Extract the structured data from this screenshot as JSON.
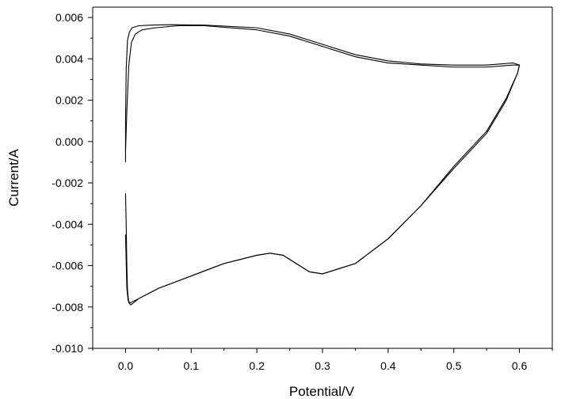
{
  "chart_data": {
    "type": "line",
    "title": "",
    "xlabel": "Potential/V",
    "ylabel": "Current/A",
    "xlim": [
      -0.05,
      0.65
    ],
    "ylim": [
      -0.01,
      0.0065
    ],
    "grid": false,
    "legend": "none",
    "x_ticks": [
      0.0,
      0.1,
      0.2,
      0.3,
      0.4,
      0.5,
      0.6
    ],
    "x_tick_labels": [
      "0.0",
      "0.1",
      "0.2",
      "0.3",
      "0.4",
      "0.5",
      "0.6"
    ],
    "y_ticks": [
      0.006,
      0.004,
      0.002,
      0.0,
      -0.002,
      -0.004,
      -0.006,
      -0.008,
      -0.01
    ],
    "y_tick_labels": [
      "0.006",
      "0.004",
      "0.002",
      "0.000",
      "-0.002",
      "-0.004",
      "-0.006",
      "-0.008",
      "-0.010"
    ],
    "series": [
      {
        "x": [
          0.0,
          0.0,
          0.001,
          0.003,
          0.006,
          0.01,
          0.02,
          0.04,
          0.07,
          0.12,
          0.2,
          0.25,
          0.3,
          0.35,
          0.4,
          0.45,
          0.5,
          0.55,
          0.59,
          0.6,
          0.597,
          0.58,
          0.55,
          0.5,
          0.45,
          0.4,
          0.35,
          0.3,
          0.28,
          0.26,
          0.24,
          0.22,
          0.2,
          0.15,
          0.1,
          0.05,
          0.02,
          0.008,
          0.005,
          0.003,
          0.002,
          0.001,
          0.0
        ],
        "y": [
          -0.001,
          0.001,
          0.0035,
          0.0049,
          0.0053,
          0.0055,
          0.0056,
          0.00563,
          0.00565,
          0.00563,
          0.0055,
          0.0052,
          0.0047,
          0.0042,
          0.0039,
          0.00375,
          0.0037,
          0.0037,
          0.0038,
          0.0037,
          0.0033,
          0.0021,
          0.0005,
          -0.0012,
          -0.0031,
          -0.0047,
          -0.0059,
          -0.0064,
          -0.0063,
          -0.0059,
          -0.0055,
          -0.0054,
          -0.0055,
          -0.0059,
          -0.0065,
          -0.0071,
          -0.0076,
          -0.0079,
          -0.0078,
          -0.0072,
          -0.006,
          -0.004,
          -0.0025
        ]
      },
      {
        "x": [
          0.0,
          0.002,
          0.005,
          0.009,
          0.015,
          0.025,
          0.045,
          0.08,
          0.12,
          0.2,
          0.25,
          0.3,
          0.35,
          0.4,
          0.45,
          0.5,
          0.55,
          0.59,
          0.6,
          0.597,
          0.58,
          0.55,
          0.5,
          0.45,
          0.4,
          0.35,
          0.3,
          0.28,
          0.26,
          0.24,
          0.22,
          0.2,
          0.15,
          0.1,
          0.05,
          0.02,
          0.007,
          0.004,
          0.002,
          0.001,
          0.0
        ],
        "y": [
          -0.0005,
          0.0015,
          0.0037,
          0.0048,
          0.0052,
          0.0054,
          0.0055,
          0.0056,
          0.0056,
          0.0054,
          0.0051,
          0.0046,
          0.0041,
          0.0038,
          0.0037,
          0.0036,
          0.0036,
          0.0037,
          0.0037,
          0.0033,
          0.002,
          0.0004,
          -0.0013,
          -0.0031,
          -0.0047,
          -0.0059,
          -0.0064,
          -0.0063,
          -0.0059,
          -0.0055,
          -0.0054,
          -0.0055,
          -0.0059,
          -0.0065,
          -0.0071,
          -0.0076,
          -0.0078,
          -0.0077,
          -0.0071,
          -0.0058,
          -0.0045
        ]
      }
    ]
  }
}
